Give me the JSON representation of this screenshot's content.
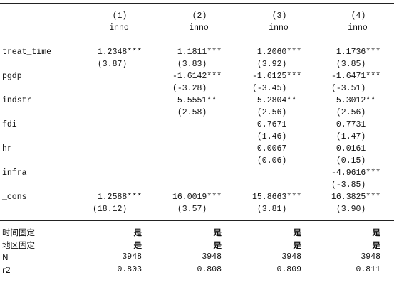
{
  "header": {
    "columns": [
      "(1)",
      "(2)",
      "(3)",
      "(4)"
    ],
    "dependent": [
      "inno",
      "inno",
      "inno",
      "inno"
    ]
  },
  "table": {
    "rows": [
      {
        "label": "treat_time",
        "coef": [
          "1.2348***",
          "1.1811***",
          "1.2060***",
          "1.1736***"
        ],
        "se": [
          "(3.87)",
          "(3.83)",
          "(3.92)",
          "(3.85)"
        ]
      },
      {
        "label": "pgdp",
        "coef": [
          null,
          "-1.6142***",
          "-1.6125***",
          "-1.6471***"
        ],
        "se": [
          null,
          "(-3.28)",
          "(-3.45)",
          "(-3.51)"
        ]
      },
      {
        "label": "indstr",
        "coef": [
          null,
          "5.5551**",
          "5.2804**",
          "5.3012**"
        ],
        "se": [
          null,
          "(2.58)",
          "(2.56)",
          "(2.56)"
        ]
      },
      {
        "label": "fdi",
        "coef": [
          null,
          null,
          "0.7671",
          "0.7731"
        ],
        "se": [
          null,
          null,
          "(1.46)",
          "(1.47)"
        ]
      },
      {
        "label": "hr",
        "coef": [
          null,
          null,
          "0.0067",
          "0.0161"
        ],
        "se": [
          null,
          null,
          "(0.06)",
          "(0.15)"
        ]
      },
      {
        "label": "infra",
        "coef": [
          null,
          null,
          null,
          "-4.9616***"
        ],
        "se": [
          null,
          null,
          null,
          "(-3.85)"
        ]
      },
      {
        "label": "_cons",
        "coef": [
          "1.2588***",
          "16.0019***",
          "15.8663***",
          "16.3825***"
        ],
        "se": [
          "(18.12)",
          "(3.57)",
          "(3.81)",
          "(3.90)"
        ]
      }
    ],
    "footer": [
      {
        "label": "时间固定",
        "values": [
          "是",
          "是",
          "是",
          "是"
        ]
      },
      {
        "label": "地区固定",
        "values": [
          "是",
          "是",
          "是",
          "是"
        ]
      },
      {
        "label": "N",
        "values": [
          "3948",
          "3948",
          "3948",
          "3948"
        ]
      },
      {
        "label": "r2",
        "values": [
          "0.803",
          "0.808",
          "0.809",
          "0.811"
        ]
      }
    ]
  }
}
